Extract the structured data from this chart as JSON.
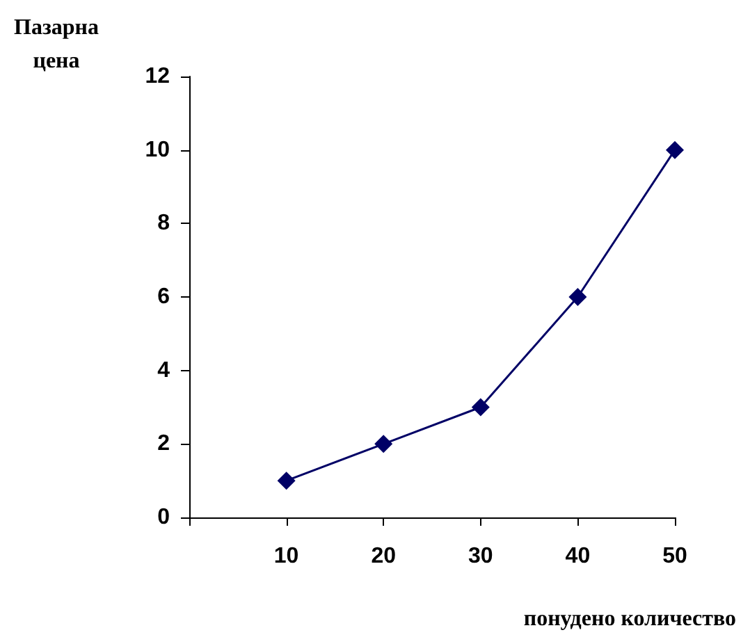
{
  "chart_data": {
    "type": "line",
    "xlabel": "понудено количество",
    "ylabel": "Пазарна\nцена",
    "x": [
      10,
      20,
      30,
      40,
      50
    ],
    "series": [
      {
        "color": "#000066",
        "values": [
          1,
          2,
          3,
          6,
          10
        ]
      }
    ],
    "xlim": [
      0,
      50
    ],
    "xticks": [
      {
        "value": 0,
        "label": null
      },
      10,
      20,
      30,
      40,
      50
    ],
    "ylim": [
      0,
      12
    ],
    "yticks": [
      0,
      2,
      4,
      6,
      8,
      10,
      12
    ],
    "marker": "diamond",
    "line_style": "solid"
  }
}
